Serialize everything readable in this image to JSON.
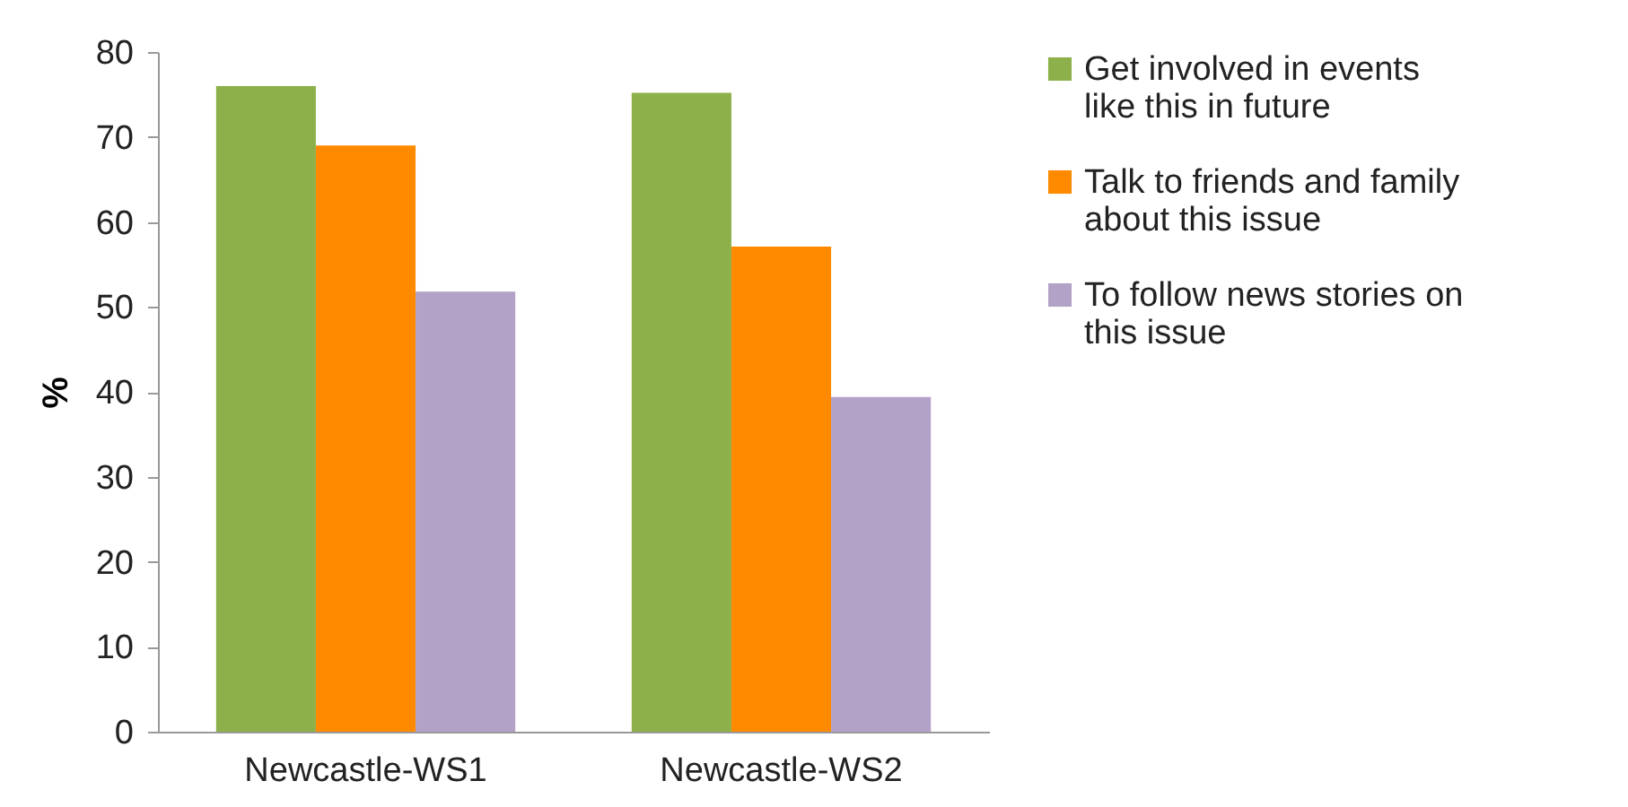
{
  "chart_data": {
    "type": "bar",
    "ylabel": "%",
    "categories": [
      "Newcastle-WS1",
      "Newcastle-WS2"
    ],
    "series": [
      {
        "name": "Get involved in events like this in future",
        "color": "#8db04a",
        "values": [
          76,
          75.2
        ]
      },
      {
        "name": "Talk to friends and family about this issue",
        "color": "#ff8a00",
        "values": [
          69,
          57.1
        ]
      },
      {
        "name": "To follow news stories on this issue",
        "color": "#b3a2c7",
        "values": [
          51.8,
          39.4
        ]
      }
    ],
    "ylim": [
      0,
      80
    ],
    "yticks": [
      0,
      10,
      20,
      30,
      40,
      50,
      60,
      70,
      80
    ],
    "grid": false,
    "legend": "right"
  }
}
